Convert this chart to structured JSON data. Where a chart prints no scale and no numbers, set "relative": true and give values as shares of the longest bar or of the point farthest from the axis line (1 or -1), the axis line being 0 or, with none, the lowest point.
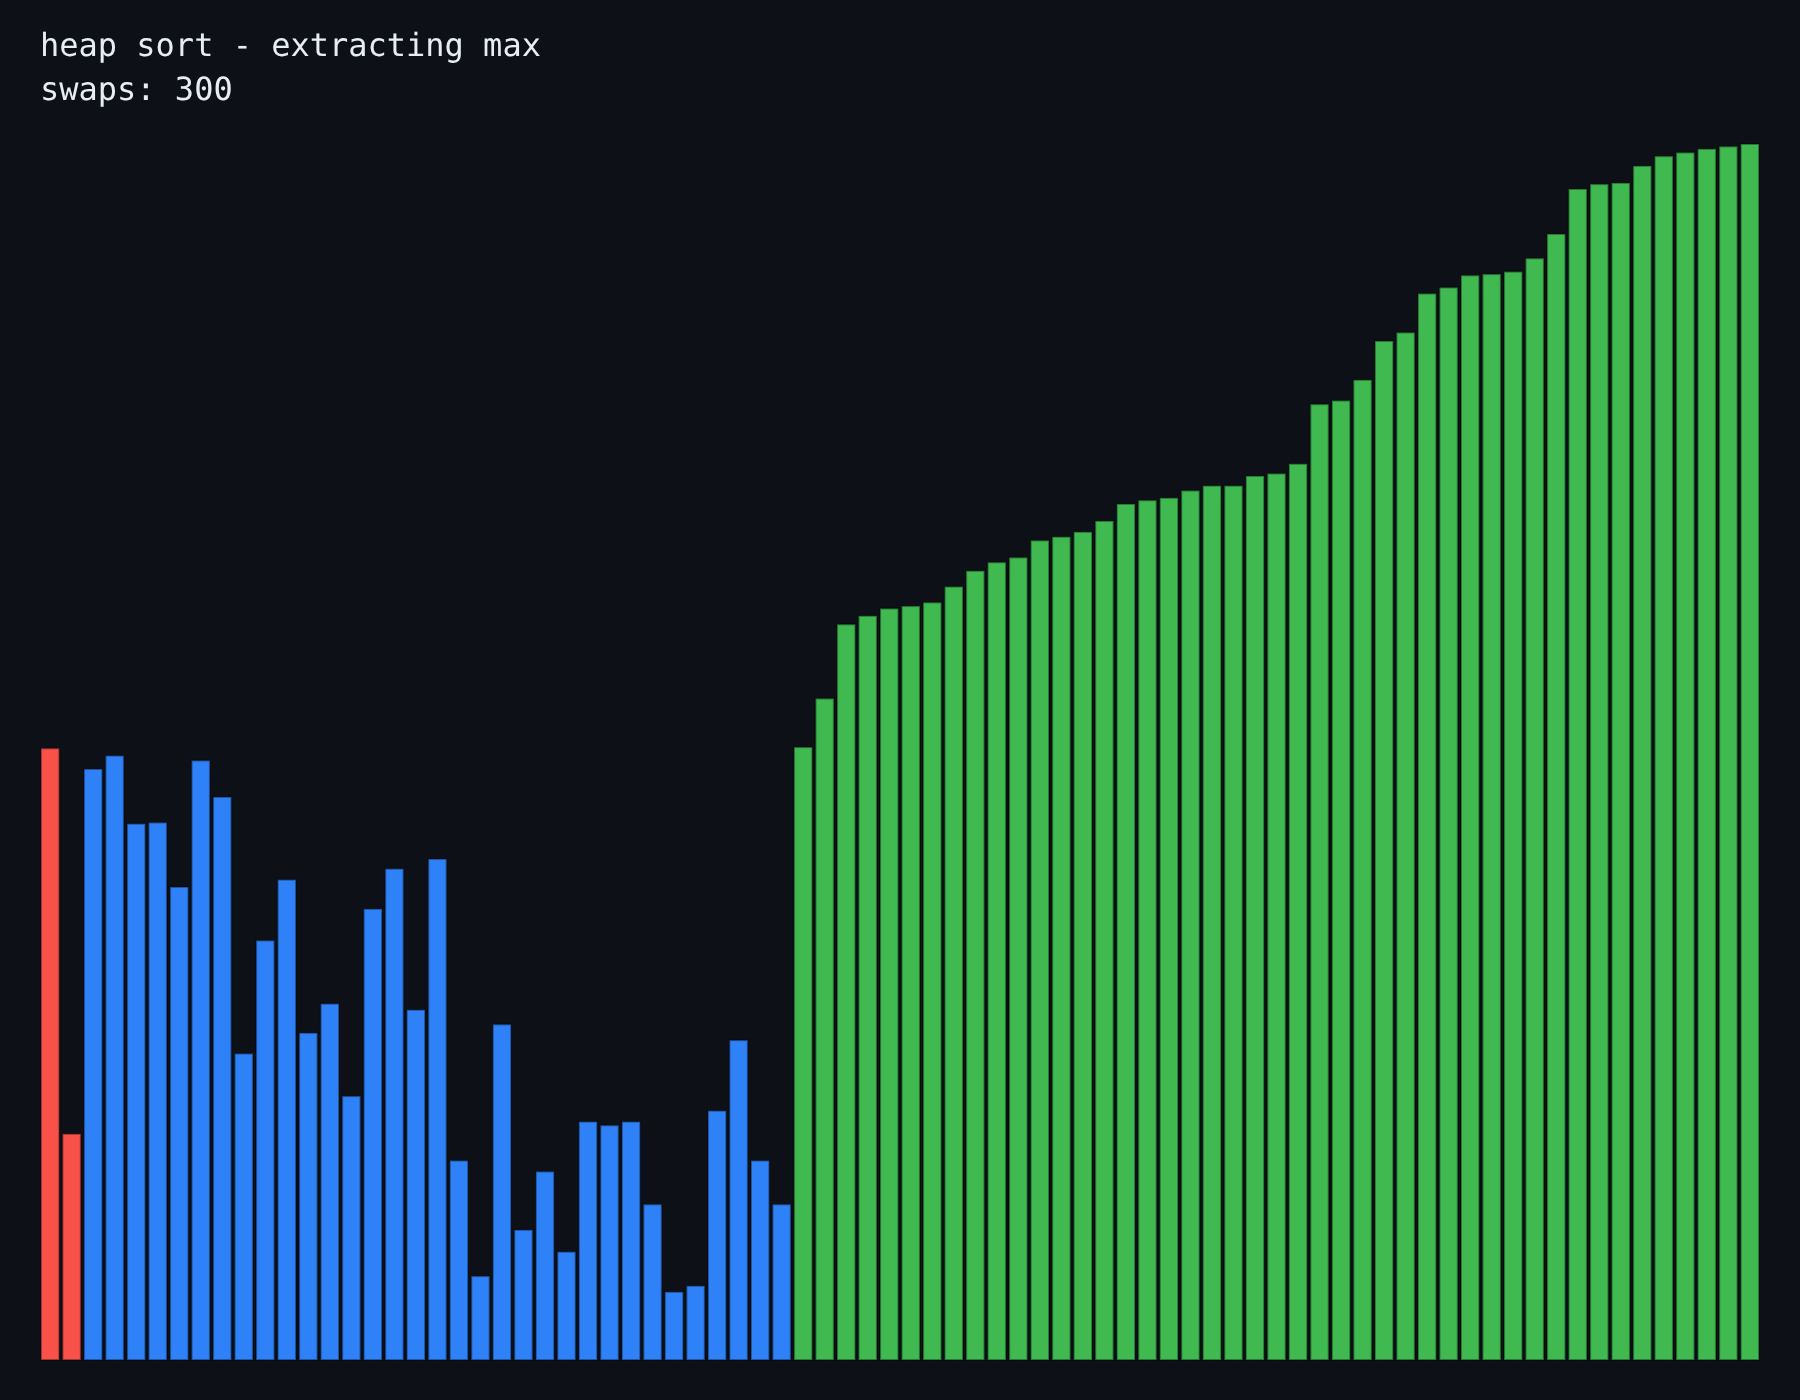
{
  "chart_data": {
    "type": "bar",
    "title": "heap sort - extracting max",
    "subtitle": "swaps: 300",
    "relative": true,
    "tick_labels": false,
    "categories": [
      null,
      null,
      null,
      null,
      null,
      null,
      null,
      null,
      null,
      null,
      null,
      null,
      null,
      null,
      null,
      null,
      null,
      null,
      null,
      null,
      null,
      null,
      null,
      null,
      null,
      null,
      null,
      null,
      null,
      null,
      null,
      null,
      null,
      null,
      null,
      null,
      null,
      null,
      null,
      null,
      null,
      null,
      null,
      null,
      null,
      null,
      null,
      null,
      null,
      null,
      null,
      null,
      null,
      null,
      null,
      null,
      null,
      null,
      null,
      null,
      null,
      null,
      null,
      null,
      null,
      null,
      null,
      null,
      null,
      null,
      null,
      null,
      null,
      null,
      null,
      null,
      null,
      null,
      null,
      null
    ],
    "values": [
      0.503,
      0.186,
      0.486,
      0.497,
      0.441,
      0.442,
      0.389,
      0.493,
      0.463,
      0.252,
      0.345,
      0.395,
      0.269,
      0.293,
      0.217,
      0.371,
      0.404,
      0.288,
      0.412,
      0.164,
      0.069,
      0.276,
      0.107,
      0.155,
      0.089,
      0.196,
      0.193,
      0.196,
      0.128,
      0.056,
      0.061,
      0.205,
      0.263,
      0.164,
      0.128,
      0.504,
      0.544,
      0.605,
      0.612,
      0.618,
      0.62,
      0.623,
      0.636,
      0.649,
      0.656,
      0.66,
      0.674,
      0.677,
      0.681,
      0.69,
      0.704,
      0.707,
      0.709,
      0.715,
      0.719,
      0.719,
      0.727,
      0.729,
      0.737,
      0.786,
      0.789,
      0.806,
      0.838,
      0.845,
      0.877,
      0.882,
      0.892,
      0.893,
      0.895,
      0.906,
      0.926,
      0.963,
      0.967,
      0.968,
      0.982,
      0.99,
      0.993,
      0.996,
      0.998,
      1
    ],
    "colors": [
      "#f85149",
      "#f85149",
      "#2f81f7",
      "#2f81f7",
      "#2f81f7",
      "#2f81f7",
      "#2f81f7",
      "#2f81f7",
      "#2f81f7",
      "#2f81f7",
      "#2f81f7",
      "#2f81f7",
      "#2f81f7",
      "#2f81f7",
      "#2f81f7",
      "#2f81f7",
      "#2f81f7",
      "#2f81f7",
      "#2f81f7",
      "#2f81f7",
      "#2f81f7",
      "#2f81f7",
      "#2f81f7",
      "#2f81f7",
      "#2f81f7",
      "#2f81f7",
      "#2f81f7",
      "#2f81f7",
      "#2f81f7",
      "#2f81f7",
      "#2f81f7",
      "#2f81f7",
      "#2f81f7",
      "#2f81f7",
      "#2f81f7",
      "#3fb950",
      "#3fb950",
      "#3fb950",
      "#3fb950",
      "#3fb950",
      "#3fb950",
      "#3fb950",
      "#3fb950",
      "#3fb950",
      "#3fb950",
      "#3fb950",
      "#3fb950",
      "#3fb950",
      "#3fb950",
      "#3fb950",
      "#3fb950",
      "#3fb950",
      "#3fb950",
      "#3fb950",
      "#3fb950",
      "#3fb950",
      "#3fb950",
      "#3fb950",
      "#3fb950",
      "#3fb950",
      "#3fb950",
      "#3fb950",
      "#3fb950",
      "#3fb950",
      "#3fb950",
      "#3fb950",
      "#3fb950",
      "#3fb950",
      "#3fb950",
      "#3fb950",
      "#3fb950",
      "#3fb950",
      "#3fb950",
      "#3fb950",
      "#3fb950",
      "#3fb950",
      "#3fb950",
      "#3fb950",
      "#3fb950",
      "#3fb950"
    ]
  }
}
